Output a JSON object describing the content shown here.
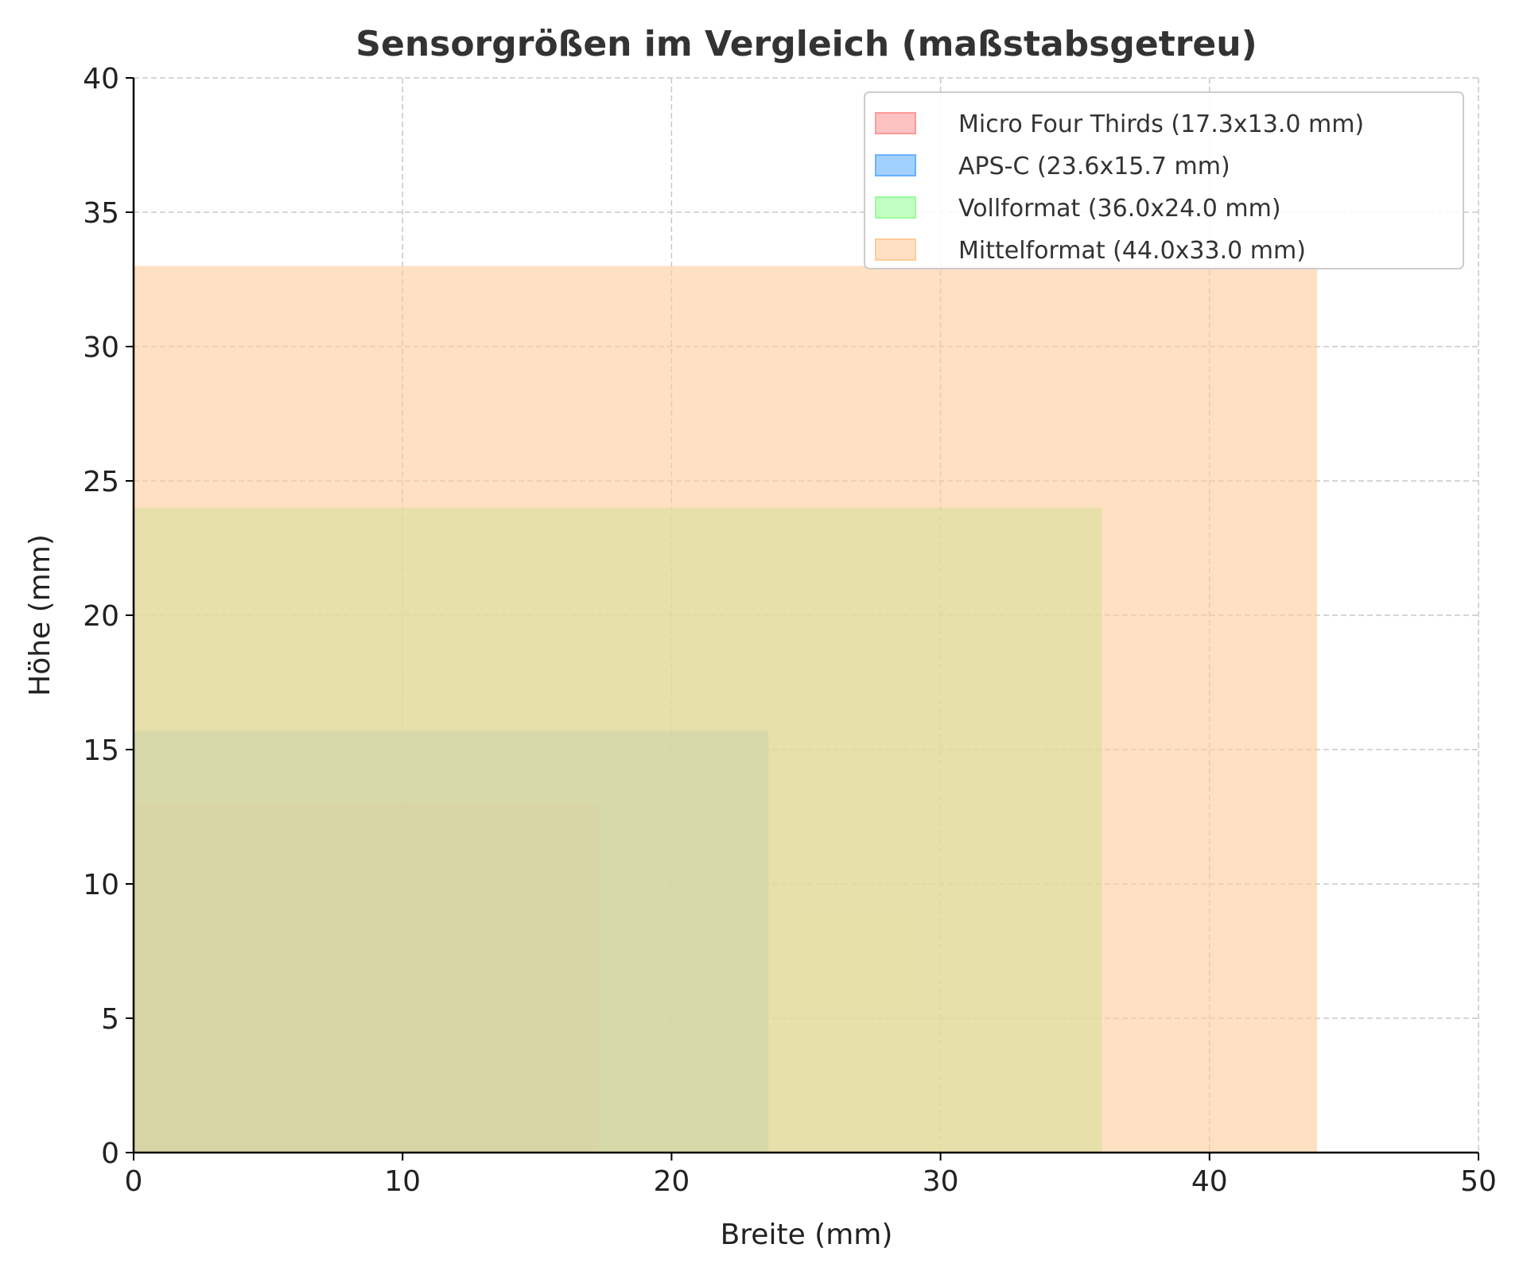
{
  "chart_data": {
    "type": "area",
    "title": "Sensorgrößen im Vergleich (maßstabsgetreu)",
    "xlabel": "Breite (mm)",
    "ylabel": "Höhe (mm)",
    "xlim": [
      0,
      50
    ],
    "ylim": [
      0,
      40
    ],
    "xticks": [
      0,
      10,
      20,
      30,
      40,
      50
    ],
    "yticks": [
      0,
      5,
      10,
      15,
      20,
      25,
      30,
      35,
      40
    ],
    "grid": true,
    "legend_position": "top-right",
    "series": [
      {
        "name": "Micro Four Thirds (17.3x13.0 mm)",
        "width": 17.3,
        "height": 13.0,
        "color": "#ff9999"
      },
      {
        "name": "APS-C (23.6x15.7 mm)",
        "width": 23.6,
        "height": 15.7,
        "color": "#66b3ff"
      },
      {
        "name": "Vollformat (36.0x24.0 mm)",
        "width": 36.0,
        "height": 24.0,
        "color": "#99ff99"
      },
      {
        "name": "Mittelformat (44.0x33.0 mm)",
        "width": 44.0,
        "height": 33.0,
        "color": "#ffcc99"
      }
    ]
  }
}
